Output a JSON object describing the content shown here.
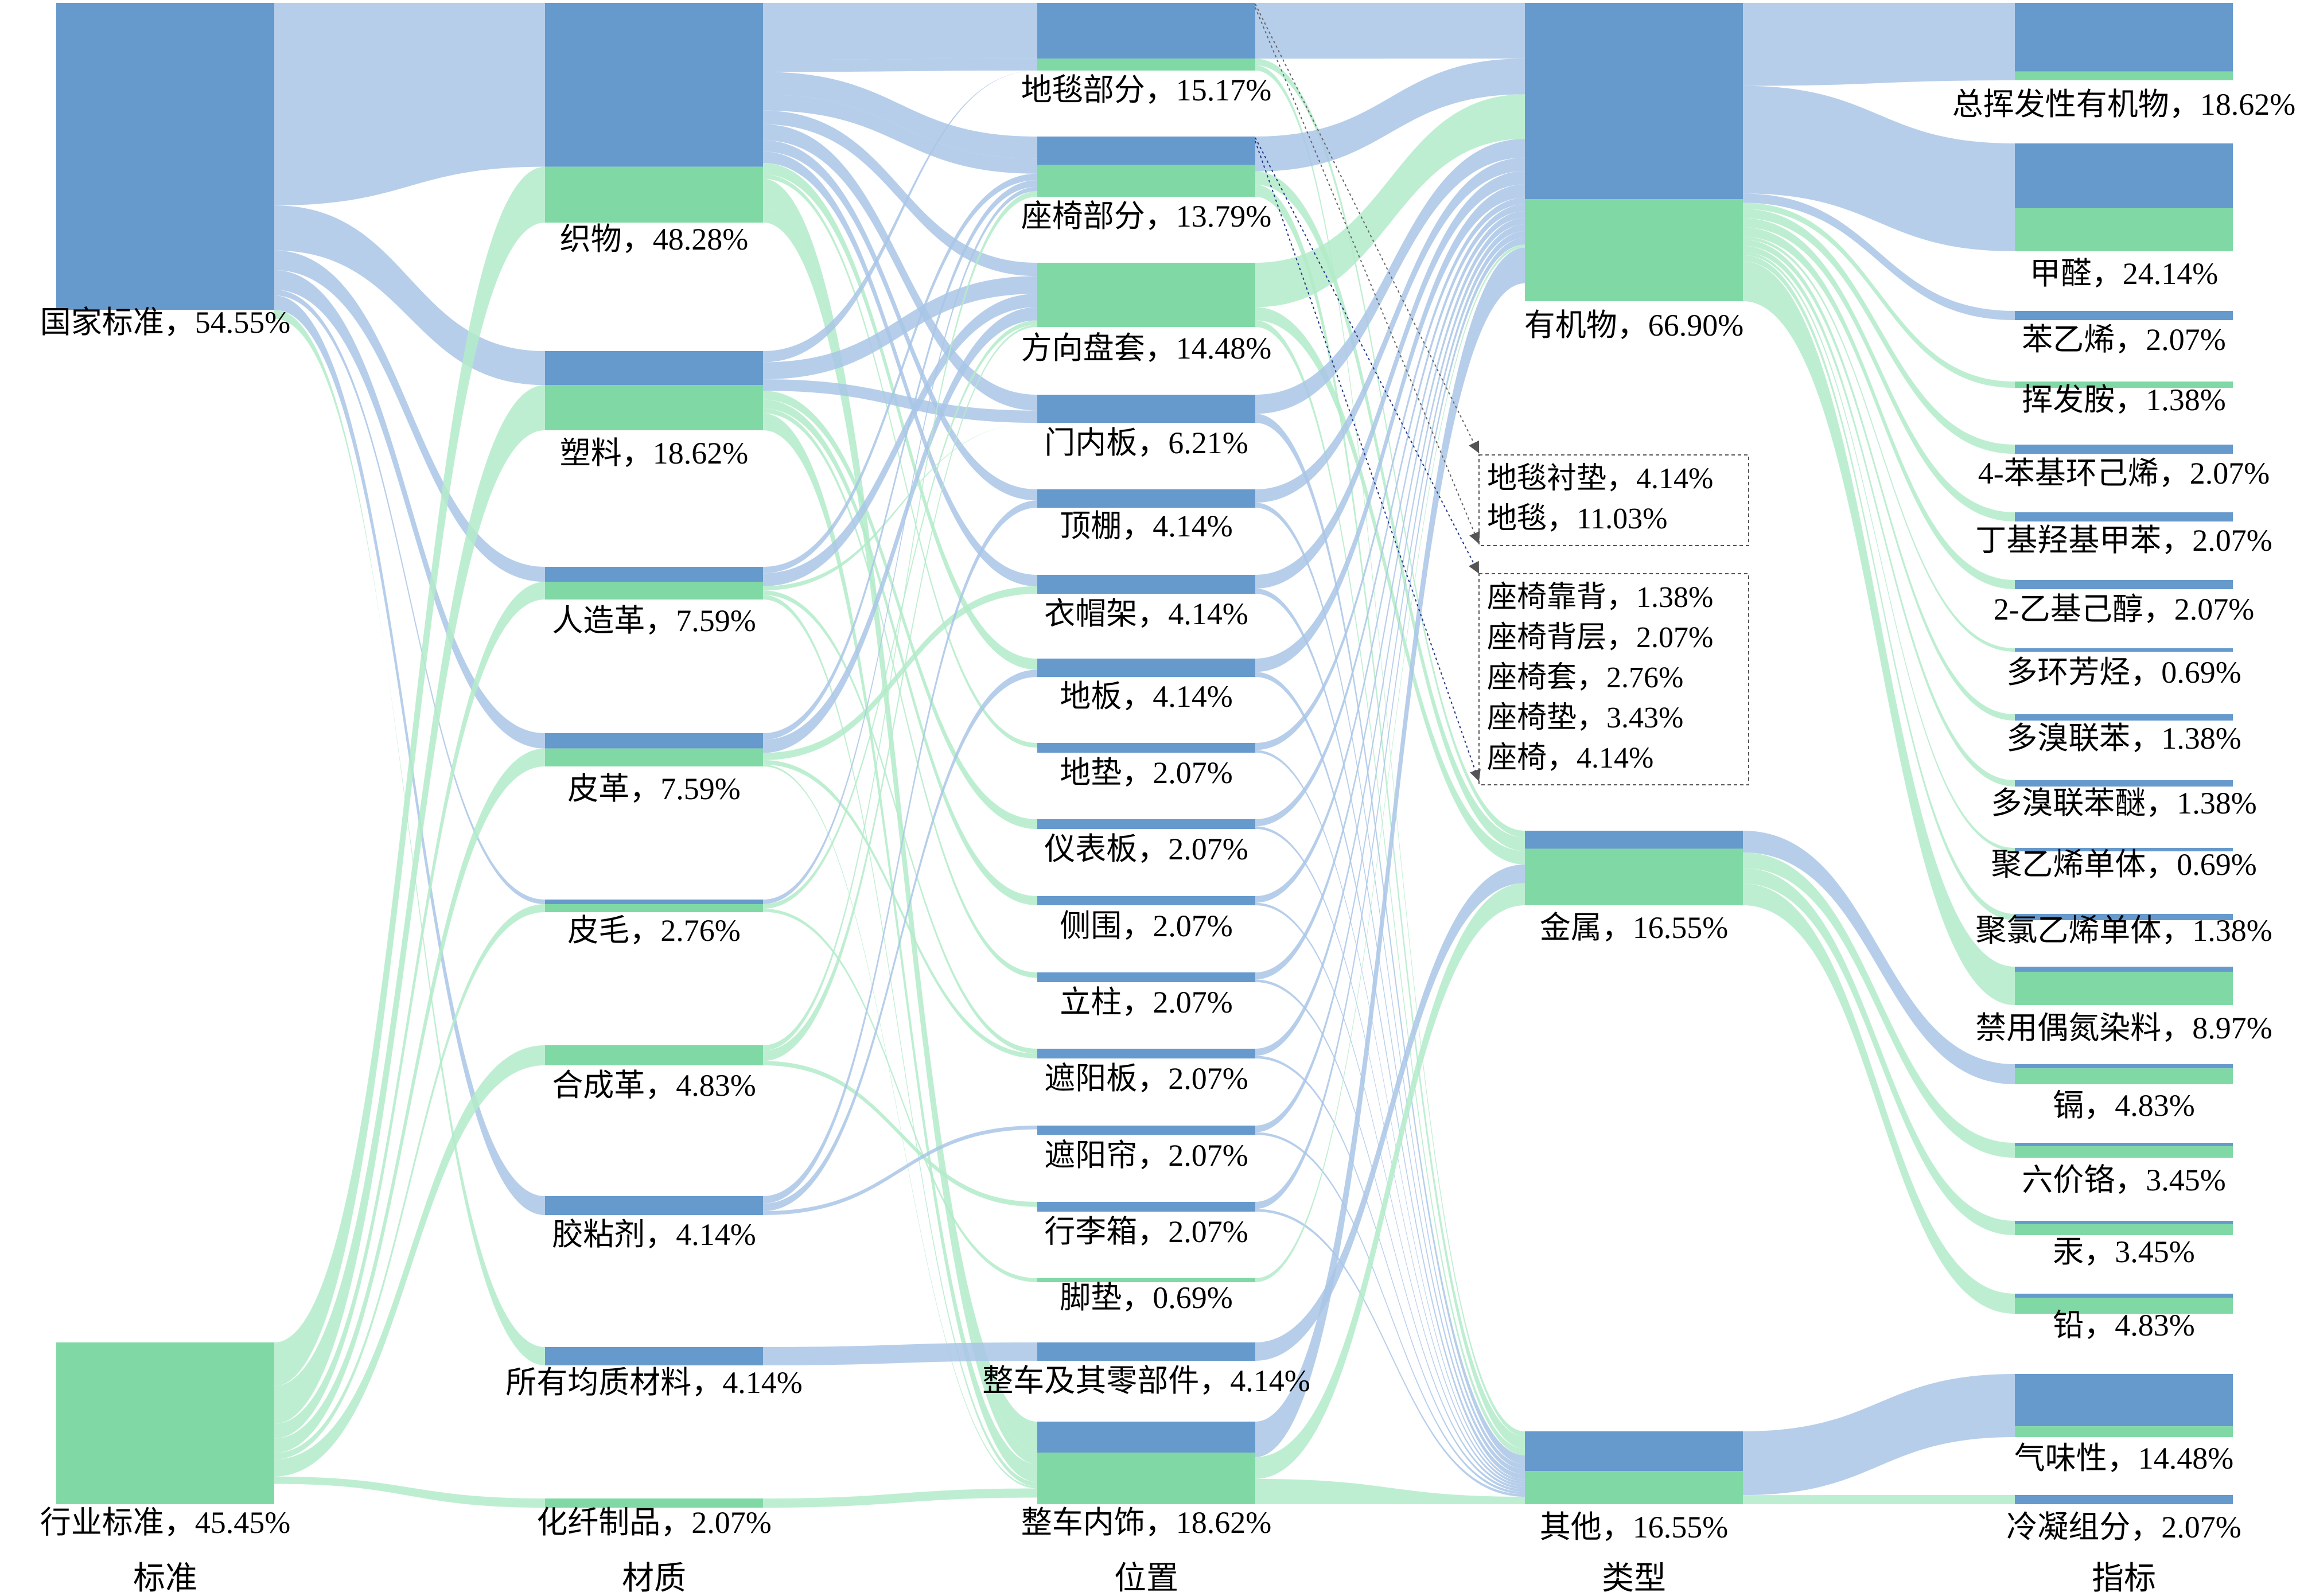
{
  "chart_data": {
    "type": "sankey",
    "colors": {
      "national": "#6699cc",
      "industry": "#80d9a5",
      "national_link": "#a9c6e6",
      "industry_link": "#b3ebc9",
      "arrow": "#666666"
    },
    "columns": [
      "标准",
      "材质",
      "位置",
      "类型",
      "指标"
    ],
    "nodes": [
      {
        "id": "s0",
        "col": 0,
        "label": "国家标准，54.55%",
        "v": 54.55,
        "n": 54.55
      },
      {
        "id": "s1",
        "col": 0,
        "label": "行业标准，45.45%",
        "v": 45.45,
        "n": 0
      },
      {
        "id": "m0",
        "col": 1,
        "label": "织物，48.28%",
        "v": 48.28,
        "n": 36
      },
      {
        "id": "m1",
        "col": 1,
        "label": "塑料，18.62%",
        "v": 18.62,
        "n": 8
      },
      {
        "id": "m2",
        "col": 1,
        "label": "人造革，7.59%",
        "v": 7.59,
        "n": 3.5
      },
      {
        "id": "m3",
        "col": 1,
        "label": "皮革，7.59%",
        "v": 7.59,
        "n": 3.5
      },
      {
        "id": "m4",
        "col": 1,
        "label": "皮毛，2.76%",
        "v": 2.76,
        "n": 1
      },
      {
        "id": "m5",
        "col": 1,
        "label": "合成革，4.83%",
        "v": 4.83,
        "n": 0
      },
      {
        "id": "m6",
        "col": 1,
        "label": "胶粘剂，4.14%",
        "v": 4.14,
        "n": 4.14
      },
      {
        "id": "m7",
        "col": 1,
        "label": "所有均质材料，4.14%",
        "v": 4.14,
        "n": 4.14
      },
      {
        "id": "m8",
        "col": 1,
        "label": "化纤制品，2.07%",
        "v": 2.07,
        "n": 0
      },
      {
        "id": "p0",
        "col": 2,
        "label": "地毯部分，15.17%",
        "v": 15.17,
        "n": 12.5
      },
      {
        "id": "p1",
        "col": 2,
        "label": "座椅部分，13.79%",
        "v": 13.79,
        "n": 6.5
      },
      {
        "id": "p2",
        "col": 2,
        "label": "方向盘套，14.48%",
        "v": 14.48,
        "n": 0
      },
      {
        "id": "p3",
        "col": 2,
        "label": "门内板，6.21%",
        "v": 6.21,
        "n": 6.21
      },
      {
        "id": "p4",
        "col": 2,
        "label": "顶棚，4.14%",
        "v": 4.14,
        "n": 4.14
      },
      {
        "id": "p5",
        "col": 2,
        "label": "衣帽架，4.14%",
        "v": 4.14,
        "n": 4.14
      },
      {
        "id": "p6",
        "col": 2,
        "label": "地板，4.14%",
        "v": 4.14,
        "n": 4.14
      },
      {
        "id": "p7",
        "col": 2,
        "label": "地垫，2.07%",
        "v": 2.07,
        "n": 2.07
      },
      {
        "id": "p8",
        "col": 2,
        "label": "仪表板，2.07%",
        "v": 2.07,
        "n": 2.07
      },
      {
        "id": "p9",
        "col": 2,
        "label": "侧围，2.07%",
        "v": 2.07,
        "n": 2.07
      },
      {
        "id": "p10",
        "col": 2,
        "label": "立柱，2.07%",
        "v": 2.07,
        "n": 2.07
      },
      {
        "id": "p11",
        "col": 2,
        "label": "遮阳板，2.07%",
        "v": 2.07,
        "n": 2.07
      },
      {
        "id": "p12",
        "col": 2,
        "label": "遮阳帘，2.07%",
        "v": 2.07,
        "n": 2.07
      },
      {
        "id": "p13",
        "col": 2,
        "label": "行李箱，2.07%",
        "v": 2.07,
        "n": 2.07
      },
      {
        "id": "p14",
        "col": 2,
        "label": "脚垫，0.69%",
        "v": 0.69,
        "n": 0
      },
      {
        "id": "p15",
        "col": 2,
        "label": "整车及其零部件，4.14%",
        "v": 4.14,
        "n": 4.14
      },
      {
        "id": "p16",
        "col": 2,
        "label": "整车内饰，18.62%",
        "v": 18.62,
        "n": 7
      },
      {
        "id": "t0",
        "col": 3,
        "label": "有机物，66.90%",
        "v": 66.9,
        "n": 44
      },
      {
        "id": "t1",
        "col": 3,
        "label": "金属，16.55%",
        "v": 16.55,
        "n": 4
      },
      {
        "id": "t2",
        "col": 3,
        "label": "其他，16.55%",
        "v": 16.55,
        "n": 9
      },
      {
        "id": "i0",
        "col": 4,
        "label": "总挥发性有机物，18.62%",
        "v": 18.62,
        "n": 16.5
      },
      {
        "id": "i1",
        "col": 4,
        "label": "甲醛，24.14%",
        "v": 24.14,
        "n": 14.5
      },
      {
        "id": "i2",
        "col": 4,
        "label": "苯乙烯，2.07%",
        "v": 2.07,
        "n": 2.07
      },
      {
        "id": "i3",
        "col": 4,
        "label": "挥发胺，1.38%",
        "v": 1.38,
        "n": 0
      },
      {
        "id": "i4",
        "col": 4,
        "label": "4-苯基环己烯，2.07%",
        "v": 2.07,
        "n": 2.07
      },
      {
        "id": "i5",
        "col": 4,
        "label": "丁基羟基甲苯，2.07%",
        "v": 2.07,
        "n": 2.07
      },
      {
        "id": "i6",
        "col": 4,
        "label": "2-乙基己醇，2.07%",
        "v": 2.07,
        "n": 2.07
      },
      {
        "id": "i7",
        "col": 4,
        "label": "多环芳烃，0.69%",
        "v": 0.69,
        "n": 0.69
      },
      {
        "id": "i8",
        "col": 4,
        "label": "多溴联苯，1.38%",
        "v": 1.38,
        "n": 1.38
      },
      {
        "id": "i9",
        "col": 4,
        "label": "多溴联苯醚，1.38%",
        "v": 1.38,
        "n": 1.38
      },
      {
        "id": "i10",
        "col": 4,
        "label": "聚乙烯单体，0.69%",
        "v": 0.69,
        "n": 0.69
      },
      {
        "id": "i11",
        "col": 4,
        "label": "聚氯乙烯单体，1.38%",
        "v": 1.38,
        "n": 1.38
      },
      {
        "id": "i12",
        "col": 4,
        "label": "禁用偶氮染料，8.97%",
        "v": 8.97,
        "n": 1.2
      },
      {
        "id": "i13",
        "col": 4,
        "label": "镉，4.83%",
        "v": 4.83,
        "n": 1
      },
      {
        "id": "i14",
        "col": 4,
        "label": "六价铬，3.45%",
        "v": 3.45,
        "n": 0.8
      },
      {
        "id": "i15",
        "col": 4,
        "label": "汞，3.45%",
        "v": 3.45,
        "n": 0.8
      },
      {
        "id": "i16",
        "col": 4,
        "label": "铅，4.83%",
        "v": 4.83,
        "n": 1
      },
      {
        "id": "i17",
        "col": 4,
        "label": "气味性，14.48%",
        "v": 14.48,
        "n": 12
      },
      {
        "id": "i18",
        "col": 4,
        "label": "冷凝组分，2.07%",
        "v": 2.07,
        "n": 2.07
      }
    ],
    "links": [
      [
        "s0",
        "m0",
        36
      ],
      [
        "s0",
        "m1",
        8
      ],
      [
        "s0",
        "m2",
        3.5
      ],
      [
        "s0",
        "m3",
        3.5
      ],
      [
        "s0",
        "m4",
        1
      ],
      [
        "s0",
        "m6",
        4.14
      ],
      [
        "s0",
        "m7",
        4.14
      ],
      [
        "s1",
        "m0",
        12.28
      ],
      [
        "s1",
        "m1",
        10.62
      ],
      [
        "s1",
        "m2",
        4.09
      ],
      [
        "s1",
        "m3",
        4.09
      ],
      [
        "s1",
        "m4",
        1.76
      ],
      [
        "s1",
        "m5",
        4.83
      ],
      [
        "s1",
        "m8",
        2.07
      ],
      [
        "m0",
        "p0",
        12.5
      ],
      [
        "m0",
        "p1",
        5
      ],
      [
        "m0",
        "p3",
        3.5
      ],
      [
        "m0",
        "p4",
        2.5
      ],
      [
        "m0",
        "p5",
        2.5
      ],
      [
        "m0",
        "p6",
        2.5
      ],
      [
        "m0",
        "p7",
        1
      ],
      [
        "m0",
        "p16",
        6.5
      ],
      [
        "m0",
        "p2",
        3
      ],
      [
        "m0",
        "p1",
        3.5
      ],
      [
        "m0",
        "p0",
        2.67
      ],
      [
        "m0",
        "p16",
        3.1
      ],
      [
        "m1",
        "p3",
        2.71
      ],
      [
        "m1",
        "p8",
        2.07
      ],
      [
        "m1",
        "p9",
        2.07
      ],
      [
        "m1",
        "p10",
        1.15
      ],
      [
        "m1",
        "p2",
        4
      ],
      [
        "m1",
        "p16",
        4
      ],
      [
        "m1",
        "p0",
        2.62
      ],
      [
        "m2",
        "p1",
        1.5
      ],
      [
        "m2",
        "p2",
        3
      ],
      [
        "m2",
        "p3",
        1
      ],
      [
        "m2",
        "p11",
        1.04
      ],
      [
        "m2",
        "p16",
        1.05
      ],
      [
        "m3",
        "p1",
        1.5
      ],
      [
        "m3",
        "p2",
        3
      ],
      [
        "m3",
        "p5",
        1.64
      ],
      [
        "m3",
        "p11",
        1.03
      ],
      [
        "m3",
        "p16",
        0.42
      ],
      [
        "m4",
        "p1",
        1
      ],
      [
        "m4",
        "p2",
        1
      ],
      [
        "m4",
        "p14",
        0.69
      ],
      [
        "m5",
        "p1",
        1.29
      ],
      [
        "m5",
        "p2",
        2.48
      ],
      [
        "m5",
        "p13",
        1.06
      ],
      [
        "m6",
        "p4",
        1.64
      ],
      [
        "m6",
        "p6",
        1.64
      ],
      [
        "m6",
        "p12",
        0.86
      ],
      [
        "m7",
        "p15",
        4.14
      ],
      [
        "m8",
        "p16",
        2.07
      ],
      [
        "p0",
        "t0",
        12.5
      ],
      [
        "p0",
        "t1",
        1.5
      ],
      [
        "p0",
        "t2",
        1.17
      ],
      [
        "p1",
        "t0",
        8
      ],
      [
        "p1",
        "t1",
        3
      ],
      [
        "p1",
        "t2",
        2.79
      ],
      [
        "p2",
        "t0",
        10
      ],
      [
        "p2",
        "t1",
        3
      ],
      [
        "p2",
        "t2",
        1.48
      ],
      [
        "p3",
        "t0",
        4.21
      ],
      [
        "p3",
        "t2",
        2
      ],
      [
        "p4",
        "t0",
        3
      ],
      [
        "p4",
        "t2",
        1.14
      ],
      [
        "p5",
        "t0",
        3
      ],
      [
        "p5",
        "t2",
        1.14
      ],
      [
        "p6",
        "t0",
        3
      ],
      [
        "p6",
        "t2",
        1.14
      ],
      [
        "p7",
        "t0",
        1.5
      ],
      [
        "p7",
        "t2",
        0.57
      ],
      [
        "p8",
        "t0",
        1.5
      ],
      [
        "p8",
        "t2",
        0.57
      ],
      [
        "p9",
        "t0",
        1.5
      ],
      [
        "p9",
        "t2",
        0.57
      ],
      [
        "p10",
        "t0",
        1.5
      ],
      [
        "p10",
        "t2",
        0.57
      ],
      [
        "p11",
        "t0",
        1.5
      ],
      [
        "p11",
        "t2",
        0.57
      ],
      [
        "p12",
        "t0",
        1.5
      ],
      [
        "p12",
        "t2",
        0.57
      ],
      [
        "p13",
        "t0",
        1.5
      ],
      [
        "p13",
        "t2",
        0.57
      ],
      [
        "p14",
        "t0",
        0.69
      ],
      [
        "p15",
        "t1",
        4.14
      ],
      [
        "p16",
        "t0",
        8
      ],
      [
        "p16",
        "t1",
        4.91
      ],
      [
        "p16",
        "t2",
        5.71
      ],
      [
        "t0",
        "i0",
        18.62
      ],
      [
        "t0",
        "i1",
        24.14
      ],
      [
        "t0",
        "i2",
        2.07
      ],
      [
        "t0",
        "i3",
        1.38
      ],
      [
        "t0",
        "i4",
        2.07
      ],
      [
        "t0",
        "i5",
        2.07
      ],
      [
        "t0",
        "i6",
        2.07
      ],
      [
        "t0",
        "i7",
        0.69
      ],
      [
        "t0",
        "i8",
        1.38
      ],
      [
        "t0",
        "i9",
        1.38
      ],
      [
        "t0",
        "i10",
        0.69
      ],
      [
        "t0",
        "i11",
        1.38
      ],
      [
        "t0",
        "i12",
        8.97
      ],
      [
        "t1",
        "i13",
        4.83
      ],
      [
        "t1",
        "i14",
        3.45
      ],
      [
        "t1",
        "i15",
        3.45
      ],
      [
        "t1",
        "i16",
        4.83
      ],
      [
        "t2",
        "i17",
        14.48
      ],
      [
        "t2",
        "i18",
        2.07
      ]
    ],
    "annotation_boxes": [
      {
        "lines": [
          "地毯衬垫，4.14%",
          "地毯，11.03%"
        ],
        "from": "p0"
      },
      {
        "lines": [
          "座椅靠背，1.38%",
          "座椅背层，2.07%",
          "座椅套，2.76%",
          "座椅垫，3.43%",
          "座椅，4.14%"
        ],
        "from": "p1"
      }
    ]
  }
}
